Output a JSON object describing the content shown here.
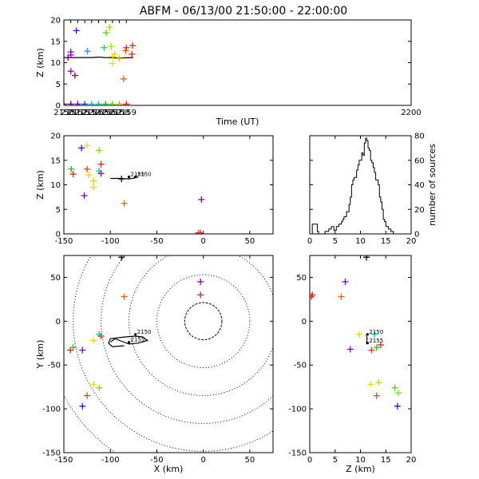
{
  "title": "ABFM - 06/13/00 21:50:00 - 22:00:00",
  "chart_data": [
    {
      "id": "time_height",
      "type": "scatter",
      "xlabel": "Time (UT)",
      "ylabel": "Z (km)",
      "xlim": [
        2150,
        2200
      ],
      "ylim": [
        0,
        20
      ],
      "xticks": [
        "2150",
        "2151",
        "2152",
        "2153",
        "2154",
        "2155",
        "2156",
        "2157",
        "2158",
        "2159",
        "2200"
      ],
      "yticks": [
        "0",
        "5",
        "10",
        "15",
        "20"
      ],
      "points": [
        {
          "x": 2151.0,
          "y": 12.5,
          "color": "#7a00c8"
        },
        {
          "x": 2151.0,
          "y": 11.8,
          "color": "#8a00c8"
        },
        {
          "x": 2151.0,
          "y": 8.0,
          "color": "#7a00c8"
        },
        {
          "x": 2150.6,
          "y": 11.2,
          "color": "#6a0090"
        },
        {
          "x": 2151.8,
          "y": 17.5,
          "color": "#5000e0"
        },
        {
          "x": 2151.6,
          "y": 7.0,
          "color": "#7a00c8"
        },
        {
          "x": 2153.4,
          "y": 12.7,
          "color": "#00a0d0"
        },
        {
          "x": 2155.8,
          "y": 13.5,
          "color": "#20d040"
        },
        {
          "x": 2156.1,
          "y": 17.0,
          "color": "#50d020"
        },
        {
          "x": 2156.6,
          "y": 18.3,
          "color": "#90e000"
        },
        {
          "x": 2156.8,
          "y": 13.8,
          "color": "#b0e000"
        },
        {
          "x": 2157.0,
          "y": 11.5,
          "color": "#e0e000"
        },
        {
          "x": 2157.0,
          "y": 9.8,
          "color": "#e0e000"
        },
        {
          "x": 2157.3,
          "y": 12.0,
          "color": "#f0d000"
        },
        {
          "x": 2158.0,
          "y": 11.0,
          "color": "#f0b000"
        },
        {
          "x": 2158.6,
          "y": 6.2,
          "color": "#f06000"
        },
        {
          "x": 2158.9,
          "y": 12.8,
          "color": "#f05000"
        },
        {
          "x": 2159.0,
          "y": 13.5,
          "color": "#e03000"
        },
        {
          "x": 2159.8,
          "y": 12.0,
          "color": "#e02020"
        },
        {
          "x": 2159.9,
          "y": 14.0,
          "color": "#e02020"
        },
        {
          "x": 2150.0,
          "y": 0.3,
          "color": "#202020"
        },
        {
          "x": 2151.0,
          "y": 0.3,
          "color": "#6a0090"
        },
        {
          "x": 2152.0,
          "y": 0.3,
          "color": "#5000d0"
        },
        {
          "x": 2153.0,
          "y": 0.3,
          "color": "#0040e0"
        },
        {
          "x": 2154.0,
          "y": 0.3,
          "color": "#00c0e0"
        },
        {
          "x": 2155.0,
          "y": 0.3,
          "color": "#00c0a0"
        },
        {
          "x": 2156.0,
          "y": 0.3,
          "color": "#00c040"
        },
        {
          "x": 2157.0,
          "y": 0.3,
          "color": "#60d000"
        },
        {
          "x": 2158.0,
          "y": 0.3,
          "color": "#f0a000"
        },
        {
          "x": 2159.0,
          "y": 0.3,
          "color": "#e02000"
        }
      ],
      "line": [
        {
          "x": 2150.0,
          "y": 11.2
        },
        {
          "x": 2152.0,
          "y": 11.2
        },
        {
          "x": 2154.0,
          "y": 11.2
        },
        {
          "x": 2155.0,
          "y": 11.3
        },
        {
          "x": 2156.0,
          "y": 11.2
        },
        {
          "x": 2158.0,
          "y": 11.1
        },
        {
          "x": 2160.0,
          "y": 11.2
        }
      ]
    },
    {
      "id": "x_z",
      "type": "scatter",
      "xlabel": "",
      "ylabel": "Z (km)",
      "xlim": [
        -150,
        75
      ],
      "ylim": [
        0,
        20
      ],
      "xticks": [
        "-150",
        "-100",
        "-50",
        "0",
        "50"
      ],
      "yticks": [
        "0",
        "5",
        "10",
        "15",
        "20"
      ],
      "points": [
        {
          "x": -142,
          "y": 13.2,
          "color": "#20c020"
        },
        {
          "x": -140,
          "y": 12.2,
          "color": "#e02020"
        },
        {
          "x": -131,
          "y": 17.5,
          "color": "#4000e0"
        },
        {
          "x": -125,
          "y": 18.0,
          "color": "#e0e000"
        },
        {
          "x": -112,
          "y": 17.0,
          "color": "#70e000"
        },
        {
          "x": -125,
          "y": 13.2,
          "color": "#f04000"
        },
        {
          "x": -123,
          "y": 12.0,
          "color": "#e0e000"
        },
        {
          "x": -118,
          "y": 10.8,
          "color": "#f0c000"
        },
        {
          "x": -118,
          "y": 9.5,
          "color": "#f0d000"
        },
        {
          "x": -112,
          "y": 12.8,
          "color": "#00c0c0"
        },
        {
          "x": -110,
          "y": 12.3,
          "color": "#8000c0"
        },
        {
          "x": -110,
          "y": 14.2,
          "color": "#e02020"
        },
        {
          "x": -128,
          "y": 7.8,
          "color": "#7a00c8"
        },
        {
          "x": -88,
          "y": 11.2,
          "color": "#000000"
        },
        {
          "x": -85,
          "y": 6.2,
          "color": "#f06000"
        },
        {
          "x": -2,
          "y": 7.0,
          "color": "#7a00c8"
        },
        {
          "x": -5,
          "y": 0.2,
          "color": "#e03000"
        },
        {
          "x": -3,
          "y": 0.2,
          "color": "#e02020"
        }
      ],
      "line": [
        {
          "x": -100,
          "y": 11.3
        },
        {
          "x": -90,
          "y": 11.3
        },
        {
          "x": -80,
          "y": 11.2
        },
        {
          "x": -74,
          "y": 11.4
        },
        {
          "x": -70,
          "y": 11.6
        }
      ],
      "labels": [
        {
          "text": "2150",
          "x": -73,
          "y": 11.6
        },
        {
          "text": "2155",
          "x": -80,
          "y": 11.6
        }
      ]
    },
    {
      "id": "histogram",
      "type": "bar",
      "xlabel": "",
      "ylabel": "number of sources",
      "xlim": [
        0,
        20
      ],
      "ylim": [
        0,
        80
      ],
      "xticks": [
        "0",
        "5",
        "10",
        "15",
        "20"
      ],
      "yticks": [
        "0",
        "20",
        "40",
        "60",
        "80"
      ],
      "bin_edges_start": 0.5,
      "bin_width": 0.25,
      "values": [
        8,
        8,
        8,
        8,
        2,
        0,
        0,
        0,
        0,
        0,
        2,
        2,
        2,
        4,
        4,
        6,
        6,
        3,
        3,
        6,
        6,
        8,
        8,
        10,
        12,
        14,
        14,
        18,
        18,
        24,
        30,
        40,
        44,
        46,
        46,
        52,
        56,
        60,
        60,
        66,
        64,
        74,
        78,
        76,
        70,
        68,
        60,
        58,
        54,
        50,
        44,
        44,
        40,
        30,
        26,
        20,
        12,
        10,
        6,
        6,
        4,
        4,
        2,
        2,
        0
      ]
    },
    {
      "id": "x_y",
      "type": "scatter",
      "xlabel": "X (km)",
      "ylabel": "Y (km)",
      "xlim": [
        -150,
        75
      ],
      "ylim": [
        -150,
        75
      ],
      "xticks": [
        "-150",
        "-100",
        "-50",
        "0",
        "50"
      ],
      "yticks": [
        "-150",
        "-100",
        "-50",
        "0",
        "50"
      ],
      "circles_km": [
        20,
        50,
        80,
        110,
        140,
        170
      ],
      "points": [
        {
          "x": -88,
          "y": 73,
          "color": "#000000"
        },
        {
          "x": -3,
          "y": 45,
          "color": "#7a00c8"
        },
        {
          "x": -3,
          "y": 30,
          "color": "#e02020"
        },
        {
          "x": -85,
          "y": 28,
          "color": "#f06000"
        },
        {
          "x": -112,
          "y": -15,
          "color": "#00c0c0"
        },
        {
          "x": -110,
          "y": -17,
          "color": "#e03000"
        },
        {
          "x": -118,
          "y": -22,
          "color": "#f0d000"
        },
        {
          "x": -140,
          "y": -30,
          "color": "#20c020"
        },
        {
          "x": -143,
          "y": -33,
          "color": "#e02020"
        },
        {
          "x": -130,
          "y": -33,
          "color": "#7a00c8"
        },
        {
          "x": -118,
          "y": -72,
          "color": "#e0e000"
        },
        {
          "x": -112,
          "y": -76,
          "color": "#70e000"
        },
        {
          "x": -125,
          "y": -85,
          "color": "#f04000"
        },
        {
          "x": -130,
          "y": -97,
          "color": "#4000e0"
        }
      ],
      "line": [
        {
          "x": -100,
          "y": -24
        },
        {
          "x": -95,
          "y": -20
        },
        {
          "x": -90,
          "y": -22
        },
        {
          "x": -80,
          "y": -26
        },
        {
          "x": -70,
          "y": -25
        },
        {
          "x": -60,
          "y": -22
        },
        {
          "x": -65,
          "y": -18
        },
        {
          "x": -73,
          "y": -17
        },
        {
          "x": -85,
          "y": -18
        },
        {
          "x": -100,
          "y": -20
        },
        {
          "x": -102,
          "y": -25
        },
        {
          "x": -98,
          "y": -29
        },
        {
          "x": -85,
          "y": -28
        }
      ],
      "labels": [
        {
          "text": "2150",
          "x": -73,
          "y": -15
        },
        {
          "text": "2155",
          "x": -80,
          "y": -24
        }
      ]
    },
    {
      "id": "z_y",
      "type": "scatter",
      "xlabel": "Z (km)",
      "ylabel": "",
      "xlim": [
        0,
        20
      ],
      "ylim": [
        -150,
        75
      ],
      "xticks": [
        "0",
        "5",
        "10",
        "15",
        "20"
      ],
      "yticks": [
        "-150",
        "-100",
        "-50",
        "0",
        "50"
      ],
      "points": [
        {
          "x": 11.2,
          "y": 73,
          "color": "#000000"
        },
        {
          "x": 7.0,
          "y": 45,
          "color": "#7a00c8"
        },
        {
          "x": 0.5,
          "y": 30,
          "color": "#e02020"
        },
        {
          "x": 0.3,
          "y": 28,
          "color": "#e03000"
        },
        {
          "x": 6.2,
          "y": 28,
          "color": "#f06000"
        },
        {
          "x": 8.0,
          "y": -32,
          "color": "#7a00c8"
        },
        {
          "x": 9.8,
          "y": -15,
          "color": "#f0d000"
        },
        {
          "x": 12.2,
          "y": -33,
          "color": "#e03000"
        },
        {
          "x": 12.8,
          "y": -15,
          "color": "#00c0c0"
        },
        {
          "x": 13.2,
          "y": -30,
          "color": "#20c020"
        },
        {
          "x": 14.0,
          "y": -27,
          "color": "#e02020"
        },
        {
          "x": 12.0,
          "y": -72,
          "color": "#e0e000"
        },
        {
          "x": 13.6,
          "y": -70,
          "color": "#b0e000"
        },
        {
          "x": 13.2,
          "y": -85,
          "color": "#f04000"
        },
        {
          "x": 16.8,
          "y": -76,
          "color": "#50d020"
        },
        {
          "x": 17.5,
          "y": -82,
          "color": "#70e000"
        },
        {
          "x": 17.3,
          "y": -97,
          "color": "#4000e0"
        }
      ],
      "line": [
        {
          "x": 11.2,
          "y": -15
        },
        {
          "x": 11.3,
          "y": -20
        },
        {
          "x": 11.2,
          "y": -26
        }
      ],
      "labels": [
        {
          "text": "2150",
          "x": 11.4,
          "y": -15
        },
        {
          "text": "2155",
          "x": 11.4,
          "y": -25
        }
      ]
    }
  ]
}
